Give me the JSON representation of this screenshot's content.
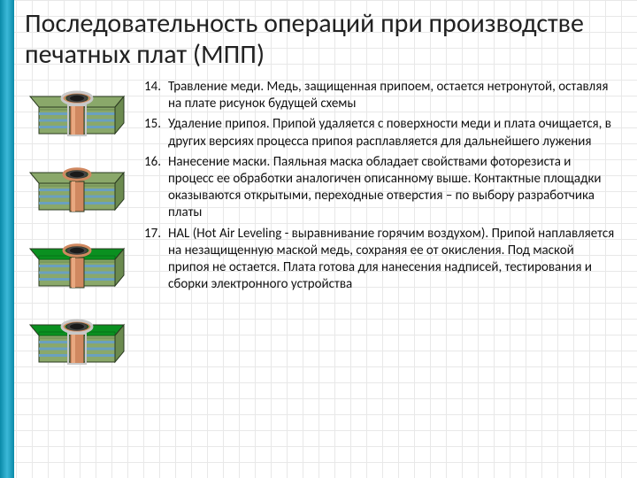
{
  "title": "Последовательность операций при производстве печатных плат (МПП)",
  "start_number": 14,
  "items": [
    {
      "num": "14.",
      "text": "Травление меди. Медь, защищенная припоем, остается нетронутой, оставляя на плате рисунок будущей схемы"
    },
    {
      "num": "15.",
      "text": "Удаление припоя. Припой удаляется с поверхности меди и плата очищается, в других версиях процесса припоя расплавляется для дальнейшего лужения"
    },
    {
      "num": "16.",
      "text": "Нанесение маски. Паяльная маска обладает свойствами фоторезиста и процесс ее обработки аналогичен описанному выше. Контактные площадки оказываются открытыми, переходные отверстия – по выбору разработчика платы"
    },
    {
      "num": "17.",
      "text": "HAL (Hot Air Leveling - выравнивание горячим воздухом). Припой наплавляется на незащищенную маской медь, сохраняя ее от окисления. Под маской припоя не остается. Плата готова для нанесения надписей, тестирования и сборки электронного устройства"
    }
  ],
  "colors": {
    "substrate": "#8aa86a",
    "substrate_dark": "#6b8a4f",
    "inner_copper": "#6aa0c0",
    "via_copper": "#d08860",
    "via_copper_hi": "#e8a880",
    "solder": "#c8c8c8",
    "mask": "#0a9020",
    "mask_dark": "#066014",
    "outline": "#2a3a20"
  },
  "illus": [
    {
      "kind": "step14"
    },
    {
      "kind": "step15"
    },
    {
      "kind": "step16"
    },
    {
      "kind": "step17"
    }
  ]
}
